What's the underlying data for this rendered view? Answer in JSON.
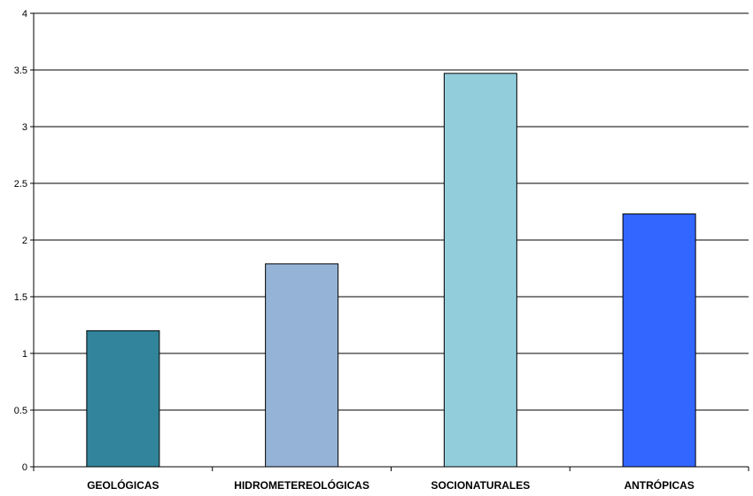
{
  "chart_data": {
    "type": "bar",
    "title": "",
    "xlabel": "",
    "ylabel": "",
    "categories": [
      "GEOLÓGICAS",
      "HIDROMETEREOLÓGICAS",
      "SOCIONATURALES",
      "ANTRÓPICAS"
    ],
    "values": [
      1.2,
      1.79,
      3.47,
      2.23
    ],
    "ylim": [
      0,
      4
    ],
    "yticks": [
      "0",
      "0.5",
      "1",
      "1.5",
      "2",
      "2.5",
      "3",
      "3.5",
      "4"
    ],
    "grid": true,
    "legend": "none",
    "colors": [
      "#31849B",
      "#95B3D7",
      "#92CDDC",
      "#3366FF"
    ]
  }
}
